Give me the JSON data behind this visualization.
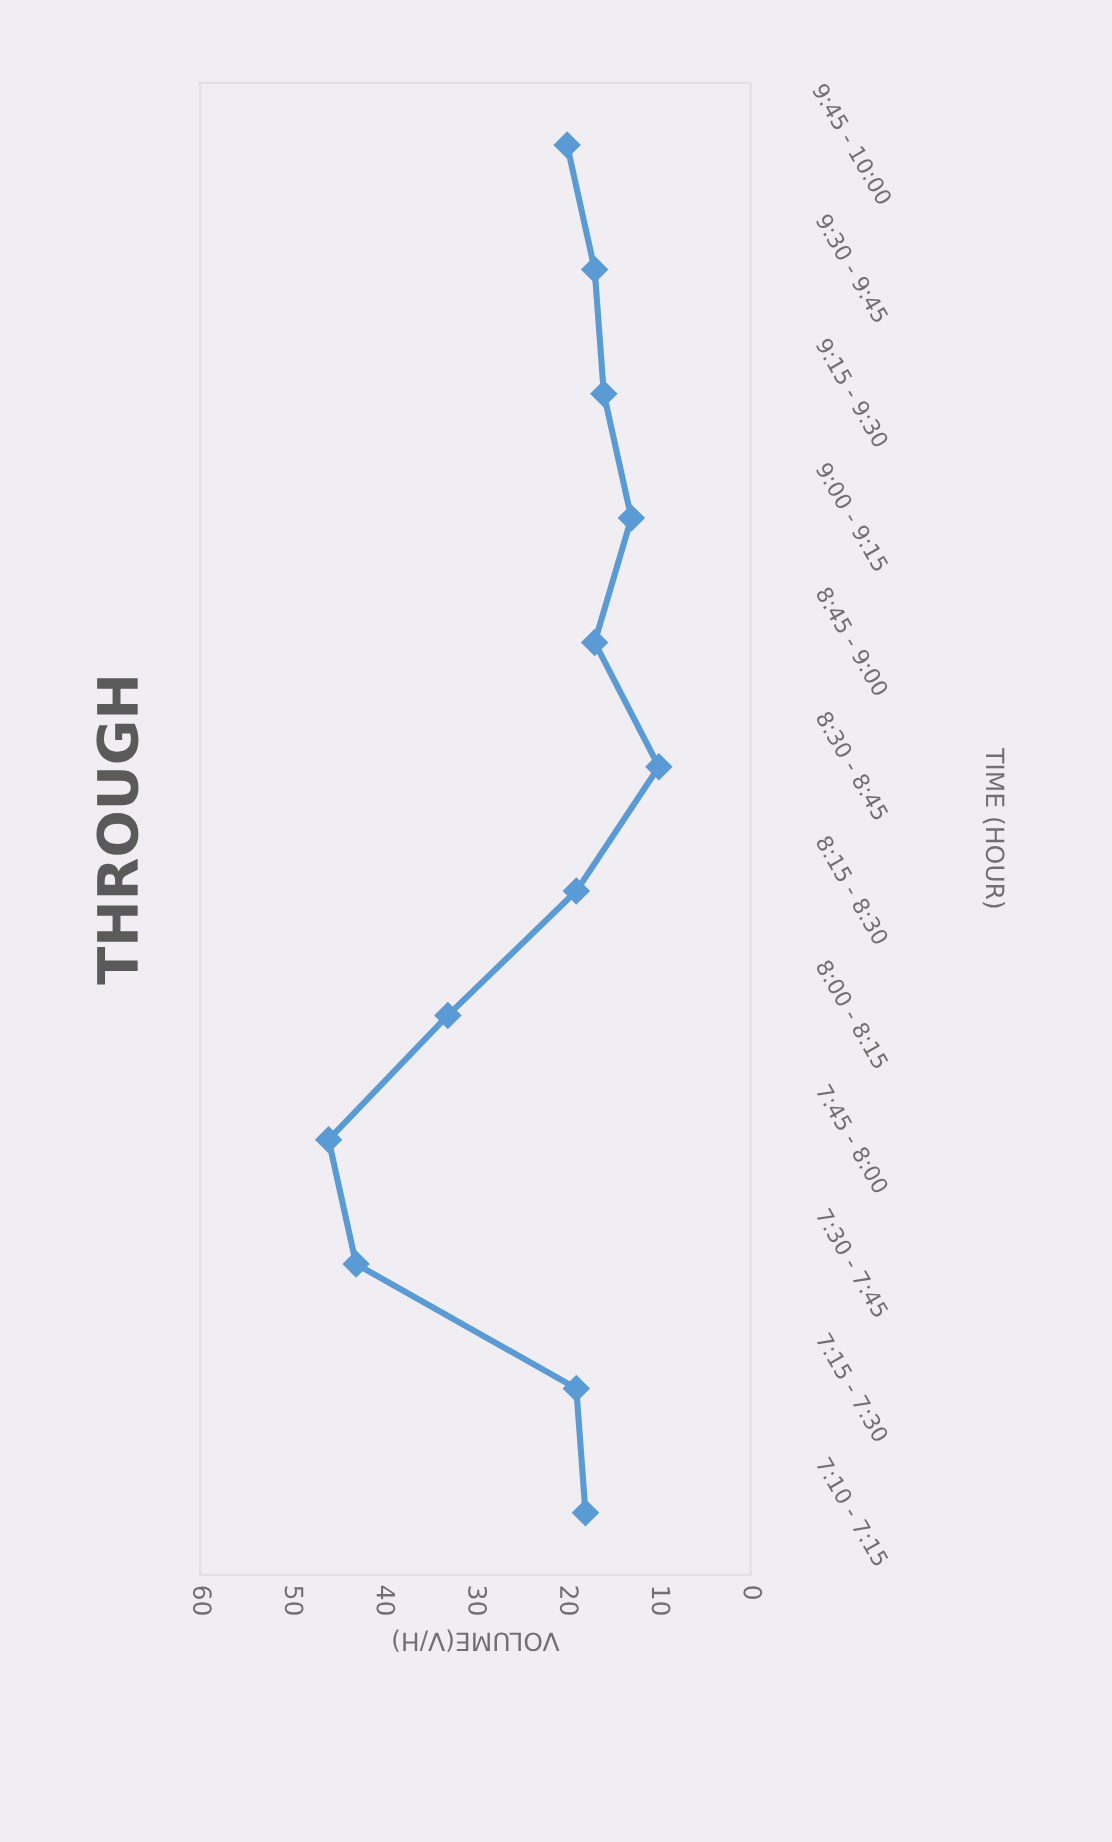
{
  "chart_data": {
    "type": "line",
    "title": "THROUGH",
    "xlabel": "VOLUME(V/H)",
    "ylabel": "TIME (HOUR)",
    "orientation": "horizontal",
    "categories": [
      "9:45 - 10:00",
      "9:30 - 9:45",
      "9:15 - 9:30",
      "9:00 - 9:15",
      "8:45 - 9:00",
      "8:30 - 8:45",
      "8:15 - 8:30",
      "8:00 - 8:15",
      "7:45 - 8:00",
      "7:30 - 7:45",
      "7:15 - 7:30",
      "7:10 - 7:15"
    ],
    "series": [
      {
        "color": "#5b9bd5",
        "values": [
          20,
          17,
          16,
          13,
          17,
          10,
          19,
          33,
          46,
          43,
          19,
          18
        ]
      }
    ],
    "xlim": [
      60,
      0
    ],
    "xticks": [
      60,
      50,
      40,
      30,
      20,
      10,
      0
    ],
    "marker": "diamond",
    "line_style": "solid",
    "grid": false,
    "legend": false
  }
}
